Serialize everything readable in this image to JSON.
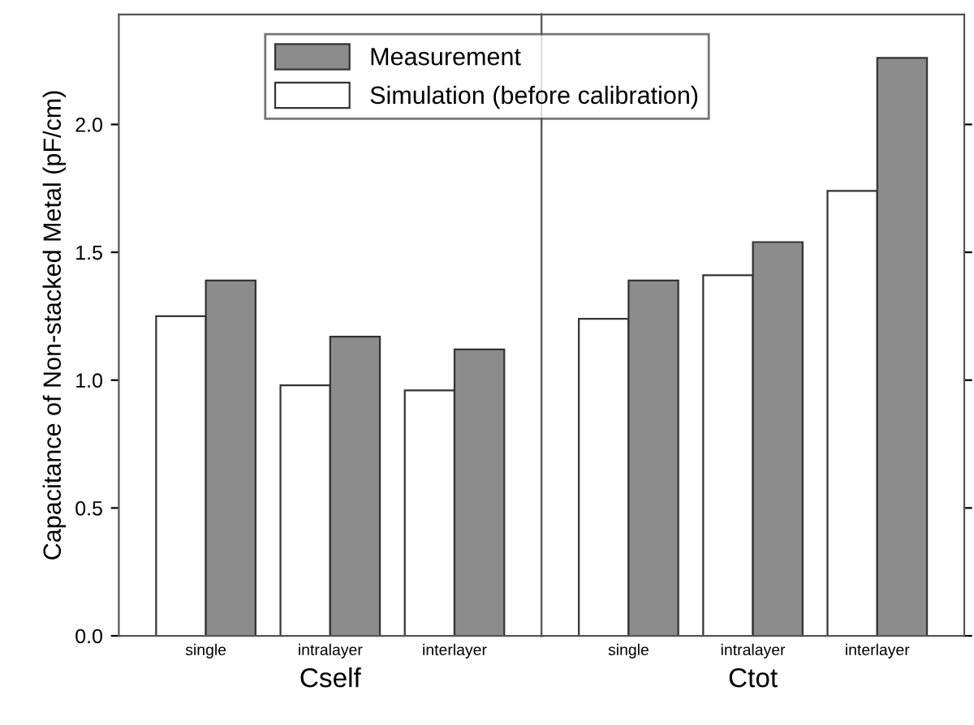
{
  "chart_data": [
    {
      "type": "bar",
      "categories": [
        "single",
        "intralayer",
        "interlayer"
      ],
      "xlabel": "Cself",
      "ylabel": "Capacitance of Non-stacked Metal (pF/cm)",
      "ylim": [
        0,
        2.43
      ],
      "yticks": [
        {
          "value": 0,
          "label": "0.0"
        },
        {
          "value": 0.5,
          "label": "0.5"
        },
        {
          "value": 1,
          "label": "1.0"
        },
        {
          "value": 1.5,
          "label": "1.5"
        },
        {
          "value": 2,
          "label": "2.0"
        }
      ],
      "legend": "top",
      "series": [
        {
          "name": "Simulation (before calibration)",
          "color": "#ffffff",
          "values": [
            1.25,
            0.98,
            0.96
          ]
        },
        {
          "name": "Measurement",
          "color": "#8c8c8c",
          "values": [
            1.39,
            1.17,
            1.12
          ]
        }
      ]
    },
    {
      "type": "bar",
      "categories": [
        "single",
        "intralayer",
        "interlayer"
      ],
      "xlabel": "Ctot",
      "ylim": [
        0,
        2.43
      ],
      "tick_labels": "x",
      "series": [
        {
          "color": "#ffffff",
          "values": [
            1.24,
            1.41,
            1.74
          ]
        },
        {
          "color": "#8c8c8c",
          "values": [
            1.39,
            1.54,
            2.26
          ]
        }
      ]
    }
  ]
}
